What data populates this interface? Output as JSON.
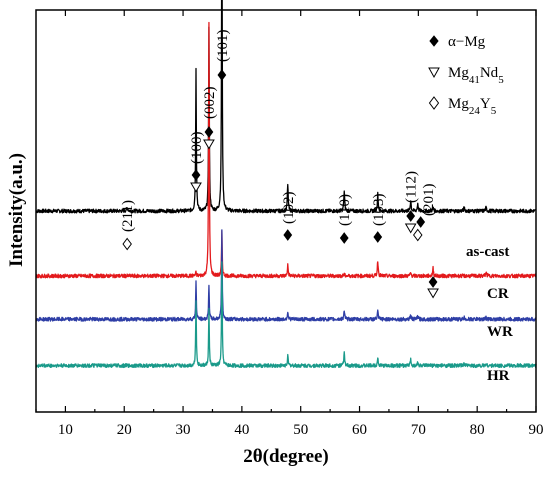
{
  "chart_data": {
    "type": "line",
    "title": "",
    "xlabel": "2θ(degree)",
    "ylabel": "Intensity(a.u.)",
    "xlim": [
      5,
      90
    ],
    "xticks": [
      10,
      20,
      30,
      40,
      50,
      60,
      70,
      80,
      90
    ],
    "grid": false,
    "legend": {
      "placement": "top-right",
      "entries": [
        {
          "marker": "◆",
          "text": "α−Mg",
          "phase": "alpha-mg"
        },
        {
          "marker": "▽",
          "text": "Mg",
          "sub": "41",
          "text2": "Nd",
          "sub2": "5",
          "phase": "mg41nd5"
        },
        {
          "marker": "◇",
          "text": "Mg",
          "sub": "24",
          "text2": "Y",
          "sub2": "5",
          "phase": "mg24y5"
        }
      ]
    },
    "series": [
      {
        "name": "as-cast",
        "color": "#000000",
        "baseline": 1.0,
        "noise": 0.012,
        "peaks": [
          {
            "x": 20.5,
            "h": 0.02,
            "w": 0.25
          },
          {
            "x": 32.2,
            "h": 0.93,
            "w": 0.12
          },
          {
            "x": 34.4,
            "h": 1.18,
            "w": 0.12
          },
          {
            "x": 36.6,
            "h": 2.08,
            "w": 0.12
          },
          {
            "x": 47.8,
            "h": 0.17,
            "w": 0.15
          },
          {
            "x": 57.4,
            "h": 0.13,
            "w": 0.15
          },
          {
            "x": 63.1,
            "h": 0.11,
            "w": 0.15
          },
          {
            "x": 68.7,
            "h": 0.07,
            "w": 0.15
          },
          {
            "x": 69.9,
            "h": 0.05,
            "w": 0.15
          },
          {
            "x": 72.5,
            "h": 0.02,
            "w": 0.2
          },
          {
            "x": 77.8,
            "h": 0.02,
            "w": 0.2
          },
          {
            "x": 81.5,
            "h": 0.02,
            "w": 0.2
          }
        ]
      },
      {
        "name": "CR",
        "color": "#e31a1c",
        "baseline": 0.58,
        "noise": 0.012,
        "peaks": [
          {
            "x": 32.2,
            "h": 0.02,
            "w": 0.15
          },
          {
            "x": 34.4,
            "h": 1.63,
            "w": 0.12
          },
          {
            "x": 36.6,
            "h": 0.28,
            "w": 0.12
          },
          {
            "x": 47.8,
            "h": 0.07,
            "w": 0.15
          },
          {
            "x": 57.4,
            "h": 0.01,
            "w": 0.15
          },
          {
            "x": 63.1,
            "h": 0.1,
            "w": 0.15
          },
          {
            "x": 68.7,
            "h": 0.02,
            "w": 0.15
          },
          {
            "x": 72.5,
            "h": 0.05,
            "w": 0.15
          },
          {
            "x": 81.5,
            "h": 0.02,
            "w": 0.2
          }
        ]
      },
      {
        "name": "WR",
        "color": "#2e3ea6",
        "baseline": 0.3,
        "noise": 0.012,
        "peaks": [
          {
            "x": 32.2,
            "h": 0.24,
            "w": 0.12
          },
          {
            "x": 34.4,
            "h": 0.23,
            "w": 0.12
          },
          {
            "x": 36.6,
            "h": 0.58,
            "w": 0.12
          },
          {
            "x": 47.8,
            "h": 0.05,
            "w": 0.15
          },
          {
            "x": 57.4,
            "h": 0.06,
            "w": 0.15
          },
          {
            "x": 63.1,
            "h": 0.05,
            "w": 0.15
          },
          {
            "x": 68.7,
            "h": 0.03,
            "w": 0.15
          },
          {
            "x": 69.9,
            "h": 0.02,
            "w": 0.15
          },
          {
            "x": 77.8,
            "h": 0.01,
            "w": 0.2
          },
          {
            "x": 81.5,
            "h": 0.01,
            "w": 0.2
          }
        ]
      },
      {
        "name": "HR",
        "color": "#1a9a8a",
        "baseline": 0.0,
        "noise": 0.012,
        "peaks": [
          {
            "x": 32.2,
            "h": 0.43,
            "w": 0.12
          },
          {
            "x": 34.4,
            "h": 0.37,
            "w": 0.12
          },
          {
            "x": 36.6,
            "h": 0.68,
            "w": 0.12
          },
          {
            "x": 47.8,
            "h": 0.06,
            "w": 0.15
          },
          {
            "x": 57.4,
            "h": 0.08,
            "w": 0.15
          },
          {
            "x": 63.1,
            "h": 0.05,
            "w": 0.15
          },
          {
            "x": 68.7,
            "h": 0.04,
            "w": 0.15
          },
          {
            "x": 69.9,
            "h": 0.02,
            "w": 0.15
          },
          {
            "x": 77.8,
            "h": 0.01,
            "w": 0.2
          },
          {
            "x": 81.5,
            "h": 0.01,
            "w": 0.2
          }
        ]
      }
    ],
    "annotations": [
      {
        "label": "(211)",
        "x": 20.5,
        "phase": "mg24y5"
      },
      {
        "label": "(100)",
        "x": 32.2,
        "phase": "alpha-mg+mg41nd5"
      },
      {
        "label": "(002)",
        "x": 34.4,
        "phase": "alpha-mg+mg41nd5"
      },
      {
        "label": "(101)",
        "x": 36.6,
        "phase": "alpha-mg"
      },
      {
        "label": "(102)",
        "x": 47.8,
        "phase": "alpha-mg"
      },
      {
        "label": "(110)",
        "x": 57.4,
        "phase": "alpha-mg"
      },
      {
        "label": "(103)",
        "x": 63.1,
        "phase": "alpha-mg"
      },
      {
        "label": "(112)",
        "x": 68.7,
        "phase": "alpha-mg+mg41nd5"
      },
      {
        "label": "(201)",
        "x": 69.9,
        "phase": "alpha-mg+mg24y5"
      }
    ]
  }
}
